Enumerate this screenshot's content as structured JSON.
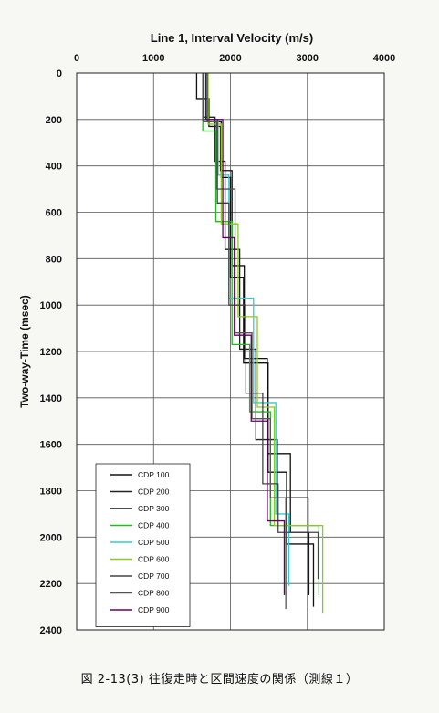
{
  "caption": "図 2-13(3) 往復走時と区間速度の関係（測線１）",
  "chart_data": {
    "type": "line",
    "title": "Line 1,  Interval Velocity (m/s)",
    "xlabel": "",
    "ylabel": "Two-way-Time (msec)",
    "xlim": [
      0,
      4000
    ],
    "ylim": [
      0,
      2400
    ],
    "x_ticks": [
      "0",
      "1000",
      "2000",
      "3000",
      "4000"
    ],
    "y_ticks": [
      "0",
      "200",
      "400",
      "600",
      "800",
      "1000",
      "1200",
      "1400",
      "1600",
      "1800",
      "2000",
      "2200",
      "2400"
    ],
    "grid": true,
    "legend_position": "bottom-left",
    "series": [
      {
        "name": "CDP 100",
        "color": "#111111",
        "steps": [
          [
            1560,
            0,
            110
          ],
          [
            1720,
            110,
            230
          ],
          [
            1870,
            230,
            420
          ],
          [
            2020,
            420,
            830
          ],
          [
            2180,
            830,
            1230
          ],
          [
            2480,
            1230,
            1640
          ],
          [
            2780,
            1640,
            1980
          ],
          [
            3020,
            1980,
            2250
          ]
        ]
      },
      {
        "name": "CDP 200",
        "color": "#222222",
        "steps": [
          [
            1650,
            0,
            190
          ],
          [
            1800,
            190,
            380
          ],
          [
            1930,
            380,
            760
          ],
          [
            2120,
            760,
            1190
          ],
          [
            2330,
            1190,
            1580
          ],
          [
            2610,
            1580,
            1830
          ],
          [
            3010,
            1830,
            2200
          ]
        ]
      },
      {
        "name": "CDP 300",
        "color": "#111111",
        "steps": [
          [
            1700,
            0,
            210
          ],
          [
            1880,
            210,
            450
          ],
          [
            2000,
            450,
            880
          ],
          [
            2170,
            880,
            1250
          ],
          [
            2490,
            1250,
            1720
          ],
          [
            2730,
            1720,
            2030
          ],
          [
            3080,
            2030,
            2300
          ]
        ]
      },
      {
        "name": "CDP 400",
        "color": "#22bb22",
        "steps": [
          [
            1640,
            0,
            250
          ],
          [
            1810,
            250,
            640
          ],
          [
            2020,
            640,
            1170
          ],
          [
            2250,
            1170,
            1460
          ],
          [
            2520,
            1460,
            1950
          ],
          [
            3150,
            1950,
            2250
          ]
        ]
      },
      {
        "name": "CDP 500",
        "color": "#33cccc",
        "steps": [
          [
            1680,
            0,
            200
          ],
          [
            1840,
            200,
            440
          ],
          [
            1980,
            440,
            970
          ],
          [
            2300,
            970,
            1420
          ],
          [
            2590,
            1420,
            1900
          ],
          [
            2760,
            1900,
            2210
          ]
        ]
      },
      {
        "name": "CDP 600",
        "color": "#88cc22",
        "steps": [
          [
            1710,
            0,
            220
          ],
          [
            1880,
            220,
            650
          ],
          [
            2100,
            650,
            1050
          ],
          [
            2350,
            1050,
            1440
          ],
          [
            2570,
            1440,
            1950
          ],
          [
            3200,
            1950,
            2330
          ]
        ]
      },
      {
        "name": "CDP 700",
        "color": "#444444",
        "steps": [
          [
            1640,
            0,
            200
          ],
          [
            1830,
            200,
            560
          ],
          [
            1980,
            560,
            1000
          ],
          [
            2200,
            1000,
            1380
          ],
          [
            2420,
            1380,
            1770
          ],
          [
            2620,
            1770,
            1980
          ],
          [
            3140,
            1980,
            2180
          ]
        ]
      },
      {
        "name": "CDP 800",
        "color": "#555555",
        "steps": [
          [
            1650,
            0,
            210
          ],
          [
            1820,
            210,
            500
          ],
          [
            2060,
            500,
            1120
          ],
          [
            2280,
            1120,
            1490
          ],
          [
            2520,
            1490,
            1830
          ],
          [
            2720,
            1830,
            2310
          ]
        ]
      },
      {
        "name": "CDP 900",
        "color": "#660066",
        "steps": [
          [
            1680,
            0,
            200
          ],
          [
            1900,
            200,
            710
          ],
          [
            2050,
            710,
            1130
          ],
          [
            2270,
            1130,
            1500
          ],
          [
            2480,
            1500,
            1930
          ],
          [
            2700,
            1930,
            2250
          ]
        ]
      }
    ]
  }
}
